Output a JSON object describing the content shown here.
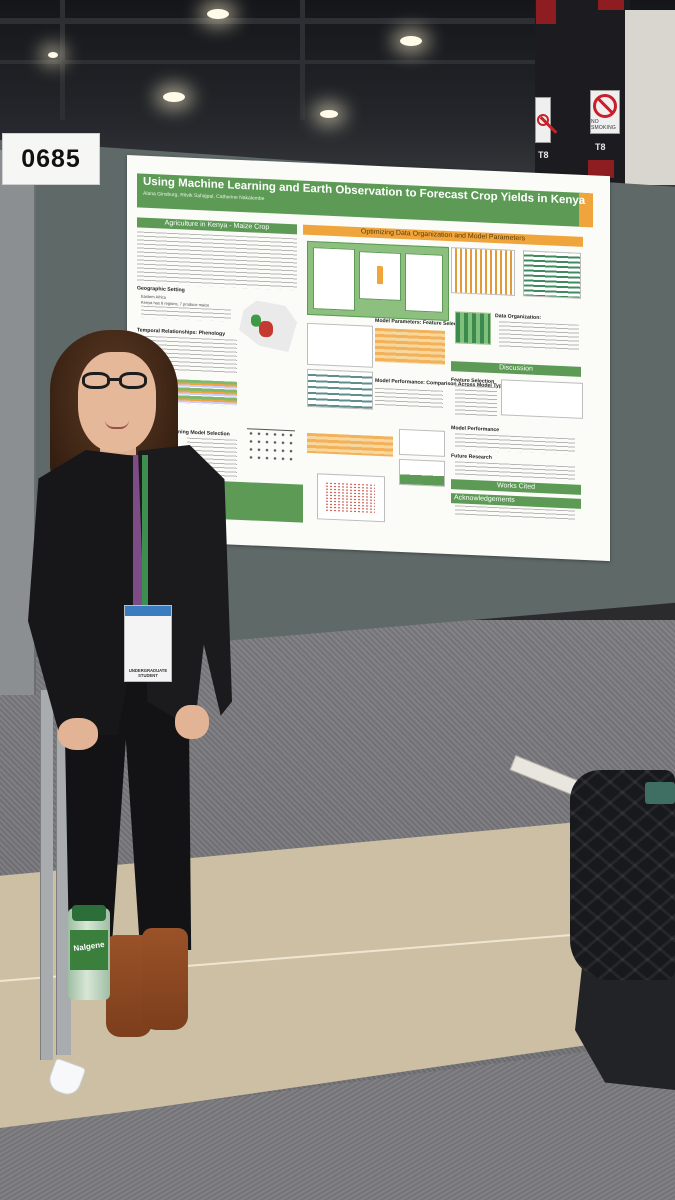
{
  "scene": {
    "booth_number": "0685",
    "sign_text": "NO SMOKING",
    "column_labels": [
      "T8",
      "T8"
    ]
  },
  "poster": {
    "title": "Using Machine Learning and Earth Observation to Forecast Crop Yields in Kenya",
    "authors": "Alana Ginsburg, Ritvik Sahajpal, Catherine Nakalembe",
    "sections": {
      "left_header": "Agriculture in Kenya - Maize Crop",
      "center_header": "Optimizing Data Organization and Model Parameters",
      "discussion_header": "Discussion",
      "works_cited_header": "Works Cited",
      "acknowledgements": "Acknowledgements"
    },
    "subheads": {
      "geographic": "Geographic Setting",
      "temporal": "Temporal Relationships: Phenology",
      "model_selection": "Learning Model Selection",
      "model_parameters": "Model Parameters: Feature Selection",
      "model_performance": "Model Performance: Comparison Across Model Types",
      "data_organization": "Data Organization:",
      "feature_selection": "Feature Selection",
      "model_performance_2": "Model Performance",
      "future_research": "Future Research"
    },
    "geographic_bullets": [
      "Eastern Africa",
      "Kenya has 8 regions, 7 produce maize"
    ]
  },
  "badge": {
    "label": "UNDERGRADUATE STUDENT"
  },
  "bottle": {
    "brand": "Nalgene"
  }
}
